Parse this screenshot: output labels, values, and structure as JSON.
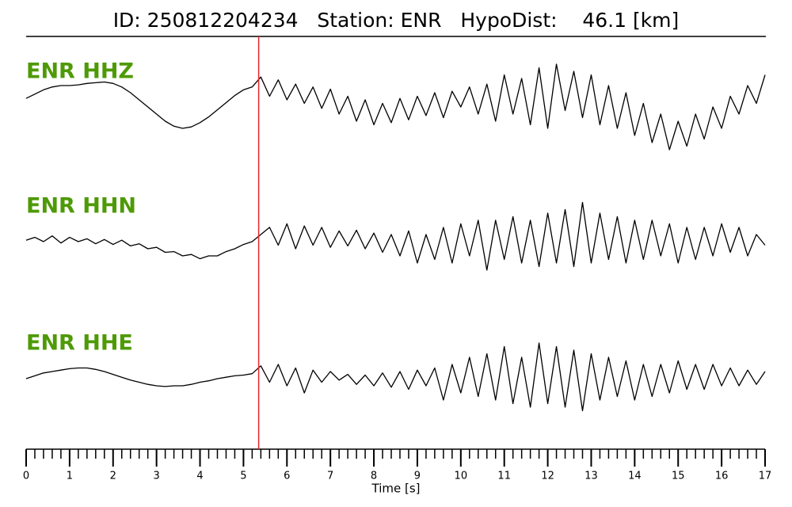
{
  "chart_data": {
    "type": "waveform",
    "title": "ID: 250812204234   Station: ENR   HypoDist:    46.1 [km]",
    "xlabel": "Time [s]",
    "xlim": [
      0,
      17
    ],
    "xticks": [
      0,
      1,
      2,
      3,
      4,
      5,
      6,
      7,
      8,
      9,
      10,
      11,
      12,
      13,
      14,
      15,
      16,
      17
    ],
    "xminor_step": 0.2,
    "ylim": [
      -1,
      1
    ],
    "pick": 5.35,
    "pick_color": "#e8252b",
    "label_color": "#4e9a06",
    "x": [
      0,
      0.2,
      0.4,
      0.6,
      0.8,
      1,
      1.2,
      1.4,
      1.6,
      1.8,
      2,
      2.2,
      2.4,
      2.6,
      2.8,
      3,
      3.2,
      3.4,
      3.6,
      3.8,
      4,
      4.2,
      4.4,
      4.6,
      4.8,
      5,
      5.2,
      5.4,
      5.6,
      5.8,
      6,
      6.2,
      6.4,
      6.6,
      6.8,
      7,
      7.2,
      7.4,
      7.6,
      7.8,
      8,
      8.2,
      8.4,
      8.6,
      8.8,
      9,
      9.2,
      9.4,
      9.6,
      9.8,
      10,
      10.2,
      10.4,
      10.6,
      10.8,
      11,
      11.2,
      11.4,
      11.6,
      11.8,
      12,
      12.2,
      12.4,
      12.6,
      12.8,
      13,
      13.2,
      13.4,
      13.6,
      13.8,
      14,
      14.2,
      14.4,
      14.6,
      14.8,
      15,
      15.2,
      15.4,
      15.6,
      15.8,
      16,
      16.2,
      16.4,
      16.6,
      16.8,
      17
    ],
    "series": [
      {
        "name": "ENR HHZ",
        "color": "#000000",
        "values": [
          0.12,
          0.18,
          0.24,
          0.28,
          0.3,
          0.3,
          0.31,
          0.33,
          0.34,
          0.35,
          0.33,
          0.28,
          0.2,
          0.1,
          0.0,
          -0.1,
          -0.2,
          -0.27,
          -0.3,
          -0.28,
          -0.22,
          -0.14,
          -0.04,
          0.06,
          0.16,
          0.24,
          0.28,
          0.42,
          0.15,
          0.38,
          0.1,
          0.32,
          0.05,
          0.28,
          -0.02,
          0.25,
          -0.1,
          0.15,
          -0.2,
          0.1,
          -0.25,
          0.05,
          -0.22,
          0.12,
          -0.18,
          0.15,
          -0.12,
          0.2,
          -0.15,
          0.22,
          0.0,
          0.28,
          -0.1,
          0.32,
          -0.2,
          0.45,
          -0.1,
          0.4,
          -0.25,
          0.55,
          -0.3,
          0.6,
          -0.05,
          0.5,
          -0.15,
          0.45,
          -0.25,
          0.3,
          -0.3,
          0.2,
          -0.4,
          0.05,
          -0.5,
          -0.1,
          -0.6,
          -0.2,
          -0.55,
          -0.1,
          -0.45,
          0.0,
          -0.3,
          0.15,
          -0.1,
          0.3,
          0.05,
          0.45
        ]
      },
      {
        "name": "ENR HHN",
        "color": "#000000",
        "values": [
          0.02,
          0.06,
          0.0,
          0.08,
          -0.02,
          0.06,
          0.0,
          0.04,
          -0.03,
          0.03,
          -0.04,
          0.02,
          -0.06,
          -0.03,
          -0.1,
          -0.08,
          -0.15,
          -0.14,
          -0.2,
          -0.18,
          -0.24,
          -0.2,
          -0.2,
          -0.14,
          -0.1,
          -0.04,
          0.0,
          0.1,
          0.2,
          -0.05,
          0.25,
          -0.1,
          0.22,
          -0.05,
          0.2,
          -0.08,
          0.15,
          -0.06,
          0.16,
          -0.1,
          0.12,
          -0.15,
          0.1,
          -0.2,
          0.15,
          -0.3,
          0.1,
          -0.25,
          0.2,
          -0.3,
          0.25,
          -0.2,
          0.3,
          -0.4,
          0.3,
          -0.25,
          0.35,
          -0.3,
          0.3,
          -0.35,
          0.4,
          -0.3,
          0.45,
          -0.35,
          0.55,
          -0.3,
          0.4,
          -0.25,
          0.35,
          -0.3,
          0.3,
          -0.25,
          0.3,
          -0.2,
          0.25,
          -0.3,
          0.2,
          -0.25,
          0.2,
          -0.2,
          0.25,
          -0.15,
          0.2,
          -0.2,
          0.1,
          -0.05
        ]
      },
      {
        "name": "ENR HHE",
        "color": "#000000",
        "values": [
          0.0,
          0.04,
          0.08,
          0.1,
          0.12,
          0.14,
          0.15,
          0.15,
          0.13,
          0.1,
          0.06,
          0.02,
          -0.02,
          -0.05,
          -0.08,
          -0.1,
          -0.11,
          -0.1,
          -0.1,
          -0.08,
          -0.05,
          -0.03,
          0.0,
          0.02,
          0.04,
          0.05,
          0.07,
          0.18,
          -0.05,
          0.2,
          -0.1,
          0.15,
          -0.2,
          0.12,
          -0.05,
          0.1,
          -0.02,
          0.06,
          -0.08,
          0.05,
          -0.1,
          0.08,
          -0.12,
          0.1,
          -0.15,
          0.12,
          -0.1,
          0.15,
          -0.3,
          0.2,
          -0.2,
          0.3,
          -0.25,
          0.35,
          -0.3,
          0.45,
          -0.35,
          0.3,
          -0.4,
          0.5,
          -0.35,
          0.45,
          -0.4,
          0.4,
          -0.45,
          0.35,
          -0.3,
          0.3,
          -0.25,
          0.25,
          -0.3,
          0.2,
          -0.25,
          0.2,
          -0.2,
          0.25,
          -0.15,
          0.2,
          -0.15,
          0.2,
          -0.1,
          0.15,
          -0.1,
          0.12,
          -0.08,
          0.1
        ]
      }
    ]
  }
}
